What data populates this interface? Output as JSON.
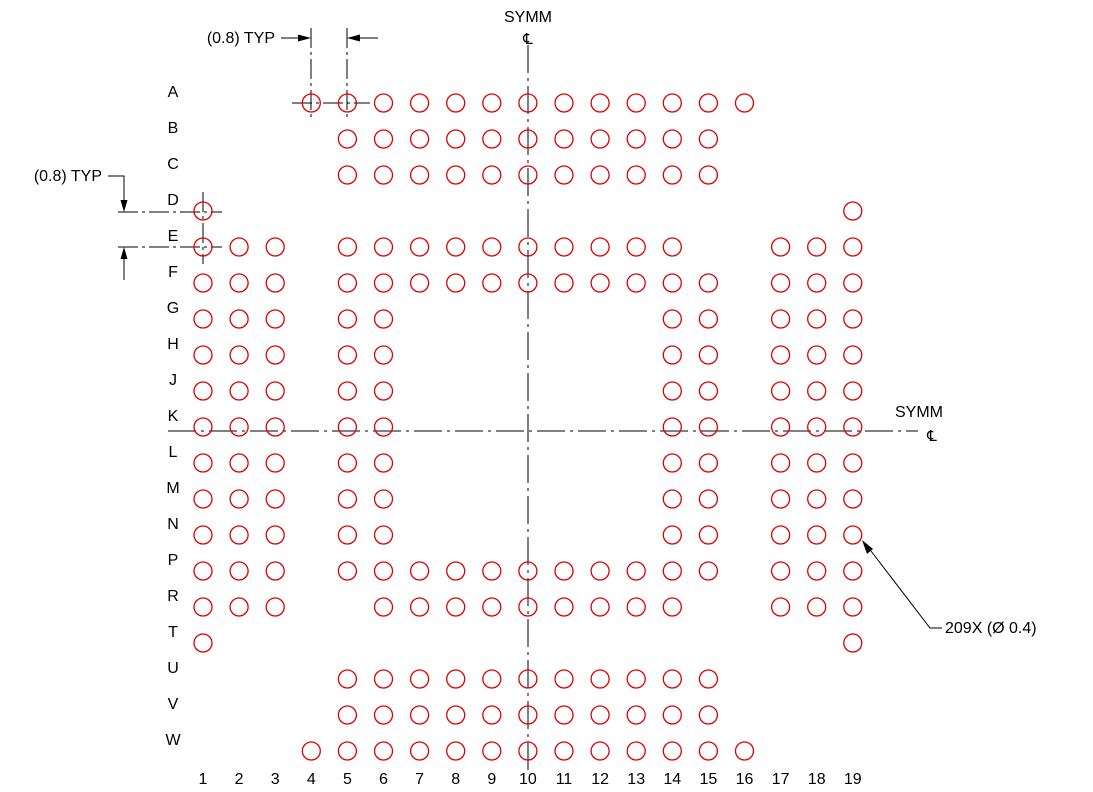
{
  "rows": [
    "A",
    "B",
    "C",
    "D",
    "E",
    "F",
    "G",
    "H",
    "J",
    "K",
    "L",
    "M",
    "N",
    "P",
    "R",
    "T",
    "U",
    "V",
    "W"
  ],
  "columns": [
    "1",
    "2",
    "3",
    "4",
    "5",
    "6",
    "7",
    "8",
    "9",
    "10",
    "11",
    "12",
    "13",
    "14",
    "15",
    "16",
    "17",
    "18",
    "19"
  ],
  "pads": {
    "A": [
      4,
      5,
      6,
      7,
      8,
      9,
      10,
      11,
      12,
      13,
      14,
      15,
      16
    ],
    "B": [
      5,
      6,
      7,
      8,
      9,
      10,
      11,
      12,
      13,
      14,
      15
    ],
    "C": [
      5,
      6,
      7,
      8,
      9,
      10,
      11,
      12,
      13,
      14,
      15
    ],
    "D": [
      1,
      19
    ],
    "E": [
      1,
      2,
      3,
      5,
      6,
      7,
      8,
      9,
      10,
      11,
      12,
      13,
      14,
      17,
      18,
      19
    ],
    "F": [
      1,
      2,
      3,
      5,
      6,
      7,
      8,
      9,
      10,
      11,
      12,
      13,
      14,
      15,
      17,
      18,
      19
    ],
    "G": [
      1,
      2,
      3,
      5,
      6,
      14,
      15,
      17,
      18,
      19
    ],
    "H": [
      1,
      2,
      3,
      5,
      6,
      14,
      15,
      17,
      18,
      19
    ],
    "J": [
      1,
      2,
      3,
      5,
      6,
      14,
      15,
      17,
      18,
      19
    ],
    "K": [
      1,
      2,
      3,
      5,
      6,
      14,
      15,
      17,
      18,
      19
    ],
    "L": [
      1,
      2,
      3,
      5,
      6,
      14,
      15,
      17,
      18,
      19
    ],
    "M": [
      1,
      2,
      3,
      5,
      6,
      14,
      15,
      17,
      18,
      19
    ],
    "N": [
      1,
      2,
      3,
      5,
      6,
      14,
      15,
      17,
      18,
      19
    ],
    "P": [
      1,
      2,
      3,
      5,
      6,
      7,
      8,
      9,
      10,
      11,
      12,
      13,
      14,
      15,
      17,
      18,
      19
    ],
    "R": [
      1,
      2,
      3,
      6,
      7,
      8,
      9,
      10,
      11,
      12,
      13,
      14,
      17,
      18,
      19
    ],
    "T": [
      1,
      19
    ],
    "U": [
      5,
      6,
      7,
      8,
      9,
      10,
      11,
      12,
      13,
      14,
      15
    ],
    "V": [
      5,
      6,
      7,
      8,
      9,
      10,
      11,
      12,
      13,
      14,
      15
    ],
    "W": [
      4,
      5,
      6,
      7,
      8,
      9,
      10,
      11,
      12,
      13,
      14,
      15,
      16
    ]
  },
  "labels": {
    "symm_vertical": "SYMM",
    "symm_horizontal": "SYMM",
    "centerline_symbol": "℄",
    "pitch_horizontal": "(0.8) TYP",
    "pitch_vertical": "(0.8) TYP",
    "pad_callout": "209X (Ø 0.4)"
  },
  "colors": {
    "pad": "#e00000",
    "line": "#000000"
  }
}
